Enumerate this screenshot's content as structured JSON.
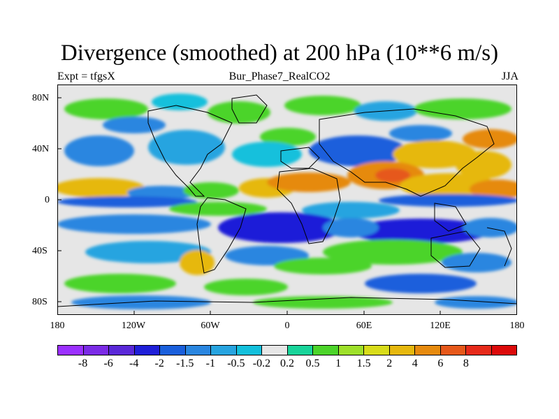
{
  "title": "Divergence (smoothed) at 200 hPa (10**6 m/s)",
  "subtitle": {
    "left": "Expt = tfgsX",
    "center": "Bur_Phase7_RealCO2",
    "right": "JJA"
  },
  "map": {
    "lat_labels": [
      "80N",
      "40N",
      "0",
      "40S",
      "80S"
    ],
    "lon_labels": [
      "180",
      "120W",
      "60W",
      "0",
      "60E",
      "120E",
      "180"
    ]
  },
  "colorbar": {
    "colors": [
      "#9b30ff",
      "#7b2be6",
      "#5a28d8",
      "#1f1fd8",
      "#1a5fdc",
      "#2a86e0",
      "#27a4e0",
      "#13c0dc",
      "#e6e6e6",
      "#18d49a",
      "#4cd42a",
      "#9ee02a",
      "#d8dc1a",
      "#e6b80e",
      "#e68a0e",
      "#e6581a",
      "#e62a1a",
      "#dc0a0a"
    ],
    "labels": [
      "-8",
      "-6",
      "-4",
      "-2",
      "-1.5",
      "-1",
      "-0.5",
      "-0.2",
      "0.2",
      "0.5",
      "1",
      "1.5",
      "2",
      "4",
      "6",
      "8"
    ]
  }
}
